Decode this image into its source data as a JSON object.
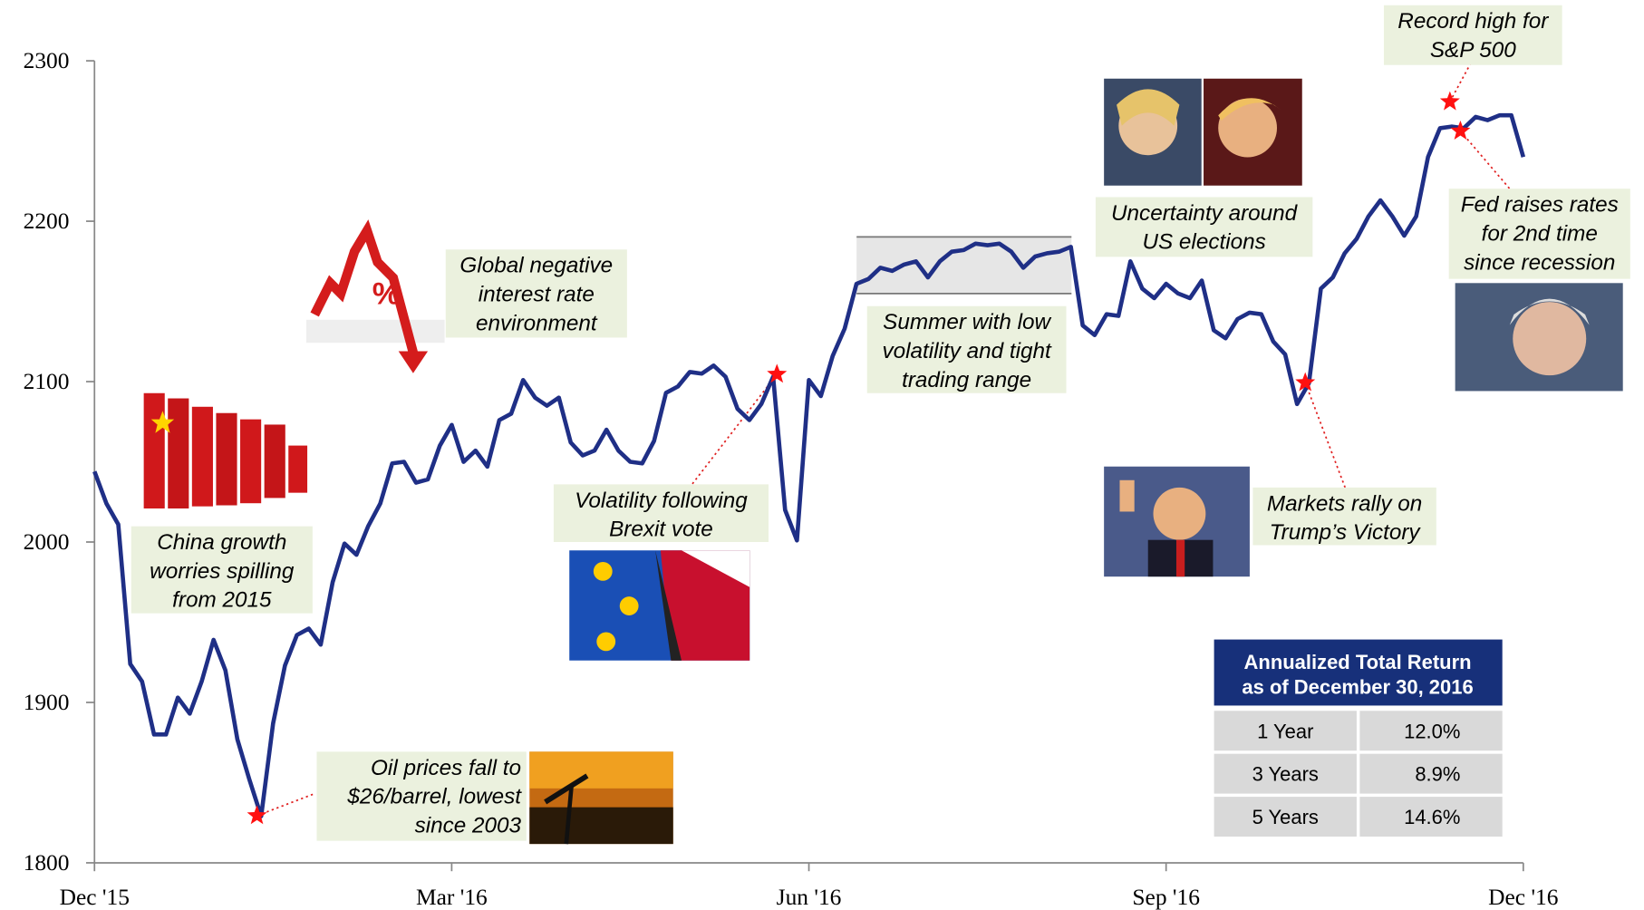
{
  "chart_data": {
    "type": "line",
    "color": "#1f2f86",
    "categories": [
      "Dec '15",
      null,
      null,
      null,
      null,
      null,
      null,
      null,
      null,
      null,
      null,
      null,
      null,
      null,
      null,
      null,
      null,
      null,
      null,
      null,
      null,
      null,
      null,
      null,
      null,
      null,
      null,
      null,
      null,
      null,
      "Mar '16",
      null,
      null,
      null,
      null,
      null,
      null,
      null,
      null,
      null,
      null,
      null,
      null,
      null,
      null,
      null,
      null,
      null,
      null,
      null,
      null,
      null,
      null,
      null,
      null,
      null,
      null,
      null,
      null,
      null,
      "Jun '16",
      null,
      null,
      null,
      null,
      null,
      null,
      null,
      null,
      null,
      null,
      null,
      null,
      null,
      null,
      null,
      null,
      null,
      null,
      null,
      null,
      null,
      null,
      null,
      null,
      null,
      null,
      null,
      null,
      null,
      "Sep '16",
      null,
      null,
      null,
      null,
      null,
      null,
      null,
      null,
      null,
      null,
      null,
      null,
      null,
      null,
      null,
      null,
      null,
      null,
      null,
      null,
      null,
      null,
      null,
      null,
      null,
      null,
      null,
      null,
      null,
      "Dec '16"
    ],
    "values": [
      2044,
      2024,
      2011,
      1924,
      1913,
      1880,
      1880,
      1903,
      1893,
      1913,
      1939,
      1920,
      1877,
      1852,
      1829,
      1887,
      1923,
      1942,
      1946,
      1936,
      1975,
      1999,
      1992,
      2010,
      2024,
      2049,
      2050,
      2037,
      2039,
      2060,
      2073,
      2050,
      2057,
      2047,
      2076,
      2080,
      2101,
      2090,
      2085,
      2090,
      2062,
      2054,
      2057,
      2070,
      2057,
      2050,
      2049,
      2063,
      2093,
      2097,
      2106,
      2105,
      2110,
      2103,
      2083,
      2076,
      2086,
      2103,
      2020,
      2001,
      2101,
      2091,
      2116,
      2133,
      2161,
      2164,
      2171,
      2169,
      2173,
      2175,
      2165,
      2175,
      2181,
      2182,
      2186,
      2185,
      2186,
      2181,
      2171,
      2178,
      2180,
      2181,
      2184,
      2135,
      2129,
      2142,
      2141,
      2175,
      2158,
      2152,
      2161,
      2155,
      2152,
      2163,
      2132,
      2127,
      2139,
      2143,
      2142,
      2125,
      2117,
      2086,
      2099,
      2158,
      2165,
      2180,
      2189,
      2203,
      2213,
      2203,
      2191,
      2203,
      2240,
      2258,
      2259,
      2258,
      2265,
      2263,
      2266,
      2266,
      2240
    ],
    "ylim": [
      1800,
      2300
    ],
    "yticks": [
      1800,
      1900,
      2000,
      2100,
      2200,
      2300
    ],
    "grid": false,
    "annotations": [
      {
        "lines": [
          "Record high for",
          "S&P 500"
        ]
      },
      {
        "lines": [
          "Fed raises rates",
          "for 2nd time",
          "since recession"
        ]
      },
      {
        "lines": [
          "Uncertainty around",
          "US elections"
        ]
      },
      {
        "lines": [
          "Summer with low",
          "volatility and tight",
          "trading range"
        ]
      },
      {
        "lines": [
          "Global negative",
          "interest rate",
          "environment"
        ]
      },
      {
        "lines": [
          "China growth",
          "worries spilling",
          "from 2015"
        ]
      },
      {
        "lines": [
          "Volatility following",
          "Brexit vote"
        ]
      },
      {
        "lines": [
          "Markets rally on",
          "Trump’s Victory"
        ]
      },
      {
        "lines": [
          "Oil prices fall to",
          "$26/barrel, lowest",
          "since 2003"
        ]
      }
    ]
  },
  "table": {
    "title_lines": [
      "Annualized Total Return",
      "as of December 30, 2016"
    ],
    "rows": [
      [
        "1 Year",
        "12.0%"
      ],
      [
        "3 Years",
        "8.9%"
      ],
      [
        "5 Years",
        "14.6%"
      ]
    ]
  }
}
